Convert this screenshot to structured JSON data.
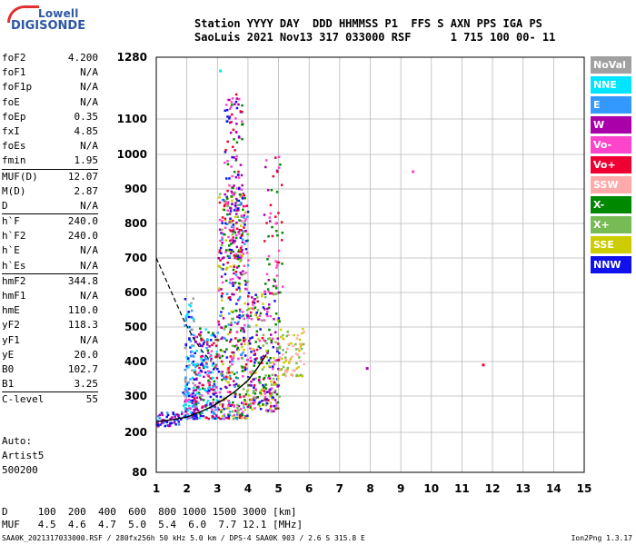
{
  "logo": {
    "line1": "Lowell",
    "line2": "DIGISONDE"
  },
  "header": {
    "line1": "Station YYYY DAY  DDD HHMMSS P1  FFS S AXN PPS IGA PS",
    "line2": "SaoLuis 2021 Nov13 317 033000 RSF      1 715 100 00- 11"
  },
  "params": {
    "group1": [
      {
        "label": "foF2",
        "value": "4.200"
      },
      {
        "label": "foF1",
        "value": "N/A"
      },
      {
        "label": "foF1p",
        "value": "N/A"
      },
      {
        "label": "foE",
        "value": "N/A"
      },
      {
        "label": "foEp",
        "value": "0.35"
      },
      {
        "label": "fxI",
        "value": "4.85"
      },
      {
        "label": "foEs",
        "value": "N/A"
      },
      {
        "label": "fmin",
        "value": "1.95"
      }
    ],
    "group2": [
      {
        "label": "MUF(D)",
        "value": "12.07"
      },
      {
        "label": "M(D)",
        "value": "2.87"
      },
      {
        "label": "D",
        "value": "N/A"
      }
    ],
    "group3": [
      {
        "label": "h`F",
        "value": "240.0"
      },
      {
        "label": "h`F2",
        "value": "240.0"
      },
      {
        "label": "h`E",
        "value": "N/A"
      },
      {
        "label": "h`Es",
        "value": "N/A"
      }
    ],
    "group4": [
      {
        "label": "hmF2",
        "value": "344.8"
      },
      {
        "label": "hmF1",
        "value": "N/A"
      },
      {
        "label": "hmE",
        "value": "110.0"
      },
      {
        "label": "yF2",
        "value": "118.3"
      },
      {
        "label": "yF1",
        "value": "N/A"
      },
      {
        "label": "yE",
        "value": "20.0"
      },
      {
        "label": "B0",
        "value": "102.7"
      },
      {
        "label": "B1",
        "value": "3.25"
      }
    ],
    "group5": [
      {
        "label": "C-level",
        "value": "55"
      }
    ]
  },
  "auto": {
    "line1": "Auto:",
    "line2": "Artist5",
    "line3": "500200"
  },
  "legend": [
    {
      "label": "NoVal",
      "color": "#a0a0a0"
    },
    {
      "label": "NNE",
      "color": "#00e5ff"
    },
    {
      "label": "E",
      "color": "#3399ff"
    },
    {
      "label": "W",
      "color": "#aa00aa"
    },
    {
      "label": "Vo-",
      "color": "#ff44cc"
    },
    {
      "label": "Vo+",
      "color": "#ee0033"
    },
    {
      "label": "SSW",
      "color": "#ffaaaa"
    },
    {
      "label": "X-",
      "color": "#008800"
    },
    {
      "label": "X+",
      "color": "#77bb55"
    },
    {
      "label": "SSE",
      "color": "#cccc00"
    },
    {
      "label": "NNW",
      "color": "#1111ee"
    }
  ],
  "bottom": {
    "line1": "D     100  200  400  600  800 1000 1500 3000 [km]",
    "line2": "MUF   4.5  4.6  4.7  5.0  5.4  6.0  7.7 12.1 [MHz]"
  },
  "footer": "SAA0K_2021317033000.RSF / 280fx256h 50 kHz 5.0 km / DPS-4 SAA0K 903 / 2.6 S 315.8 E",
  "version": "Ion2Png 1.3.17",
  "chart_data": {
    "type": "scatter",
    "xlim": [
      1,
      15
    ],
    "ylim": [
      80,
      1280
    ],
    "x_ticks": [
      "1",
      "2",
      "3",
      "4",
      "5",
      "6",
      "7",
      "8",
      "9",
      "10",
      "11",
      "12",
      "13",
      "14",
      "15"
    ],
    "y_ticks": [
      "80",
      "200",
      "300",
      "400",
      "500",
      "600",
      "700",
      "800",
      "900",
      "1000",
      "1100",
      "1280"
    ],
    "grid": true,
    "trace_curve": {
      "x": [
        1.0,
        1.3,
        1.6,
        2.0,
        2.4,
        2.8,
        3.2,
        3.6,
        4.0,
        4.3,
        4.6
      ],
      "y": [
        230,
        232,
        236,
        242,
        255,
        270,
        290,
        315,
        345,
        380,
        420
      ]
    },
    "trace_dashed": {
      "x": [
        1.0,
        1.3,
        1.6,
        1.9,
        2.2,
        2.5,
        2.8
      ],
      "y": [
        700,
        640,
        580,
        520,
        470,
        430,
        400
      ]
    },
    "echo_clusters": [
      {
        "x": [
          1.8,
          2.3
        ],
        "y": [
          240,
          320
        ],
        "n": 90,
        "colors": [
          "#1111ee",
          "#ff44cc",
          "#aa00aa",
          "#3399ff",
          "#00e5ff"
        ]
      },
      {
        "x": [
          1.9,
          2.2
        ],
        "y": [
          300,
          600
        ],
        "n": 80,
        "colors": [
          "#00e5ff",
          "#3399ff",
          "#1111ee",
          "#a0a0a0"
        ]
      },
      {
        "x": [
          2.2,
          3.0
        ],
        "y": [
          240,
          500
        ],
        "n": 220,
        "colors": [
          "#1111ee",
          "#aa00aa",
          "#ff44cc",
          "#ee0033",
          "#3399ff",
          "#008800",
          "#00e5ff"
        ]
      },
      {
        "x": [
          3.0,
          4.0
        ],
        "y": [
          240,
          900
        ],
        "n": 480,
        "colors": [
          "#ff44cc",
          "#ee0033",
          "#aa00aa",
          "#1111ee",
          "#008800",
          "#77bb55",
          "#cccc00",
          "#3399ff"
        ]
      },
      {
        "x": [
          3.2,
          3.8
        ],
        "y": [
          700,
          1180
        ],
        "n": 150,
        "colors": [
          "#ff44cc",
          "#ee0033",
          "#aa00aa",
          "#008800",
          "#1111ee"
        ]
      },
      {
        "x": [
          4.0,
          5.0
        ],
        "y": [
          260,
          600
        ],
        "n": 260,
        "colors": [
          "#cccc00",
          "#77bb55",
          "#ff44cc",
          "#ee0033",
          "#aa00aa",
          "#008800",
          "#1111ee"
        ]
      },
      {
        "x": [
          4.5,
          5.1
        ],
        "y": [
          600,
          1000
        ],
        "n": 60,
        "colors": [
          "#ff44cc",
          "#aa00aa",
          "#008800",
          "#ee0033"
        ]
      },
      {
        "x": [
          5.0,
          5.8
        ],
        "y": [
          360,
          500
        ],
        "n": 80,
        "colors": [
          "#cccc00",
          "#77bb55",
          "#ffaaaa"
        ]
      },
      {
        "x": [
          1.0,
          1.8
        ],
        "y": [
          220,
          260
        ],
        "n": 50,
        "colors": [
          "#1111ee",
          "#aa00aa",
          "#3399ff"
        ]
      }
    ],
    "isolated_points": [
      {
        "x": 7.9,
        "y": 380,
        "color": "#aa00aa"
      },
      {
        "x": 11.7,
        "y": 390,
        "color": "#ee0033"
      },
      {
        "x": 9.4,
        "y": 950,
        "color": "#ff44cc"
      },
      {
        "x": 3.1,
        "y": 1240,
        "color": "#00e5ff"
      }
    ]
  }
}
